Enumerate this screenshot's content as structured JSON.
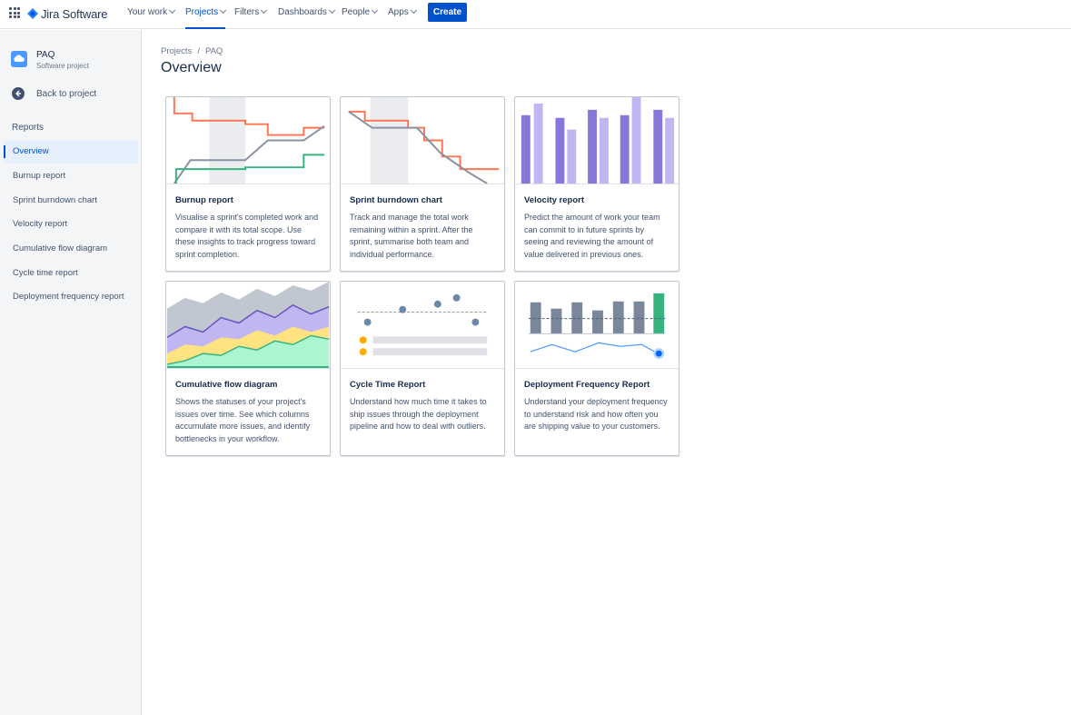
{
  "brand": {
    "name": "Jira Software"
  },
  "topnav": {
    "items": [
      {
        "label": "Your work"
      },
      {
        "label": "Projects"
      },
      {
        "label": "Filters"
      },
      {
        "label": "Dashboards"
      },
      {
        "label": "People"
      },
      {
        "label": "Apps"
      }
    ],
    "active": "Projects",
    "create_label": "Create"
  },
  "sidebar": {
    "project_name": "PAQ",
    "project_type": "Software project",
    "back_label": "Back to project",
    "section_label": "Reports",
    "items": [
      {
        "label": "Overview"
      },
      {
        "label": "Burnup report"
      },
      {
        "label": "Sprint burndown chart"
      },
      {
        "label": "Velocity report"
      },
      {
        "label": "Cumulative flow diagram"
      },
      {
        "label": "Cycle time report"
      },
      {
        "label": "Deployment frequency report"
      }
    ],
    "selected": "Overview"
  },
  "breadcrumb": {
    "items": [
      "Projects",
      "PAQ"
    ],
    "separator": "/"
  },
  "page_title": "Overview",
  "cards": [
    {
      "title": "Burnup report",
      "description": "Visualise a sprint's completed work and compare it with its total scope. Use these insights to track progress toward sprint completion.",
      "icon": "burnup-chart-illustration"
    },
    {
      "title": "Sprint burndown chart",
      "description": "Track and manage the total work remaining within a sprint. After the sprint, summarise both team and individual performance.",
      "icon": "burndown-chart-illustration"
    },
    {
      "title": "Velocity report",
      "description": "Predict the amount of work your team can commit to in future sprints by seeing and reviewing the amount of value delivered in previous ones.",
      "icon": "velocity-chart-illustration"
    },
    {
      "title": "Cumulative flow diagram",
      "description": "Shows the statuses of your project's issues over time. See which columns accumulate more issues, and identify bottlenecks in your workflow.",
      "icon": "cumulative-flow-illustration"
    },
    {
      "title": "Cycle Time Report",
      "description": "Understand how much time it takes to ship issues through the deployment pipeline and how to deal with outliers.",
      "icon": "cycle-time-illustration"
    },
    {
      "title": "Deployment Frequency Report",
      "description": "Understand your deployment frequency to understand risk and how often you are shipping value to your customers.",
      "icon": "deployment-frequency-illustration"
    }
  ],
  "colors": {
    "primary": "#0052cc",
    "orange": "#ff7452",
    "green": "#36b37e",
    "purple_dark": "#8777d9",
    "purple_light": "#c0b6f2",
    "gray": "#8993a4"
  }
}
